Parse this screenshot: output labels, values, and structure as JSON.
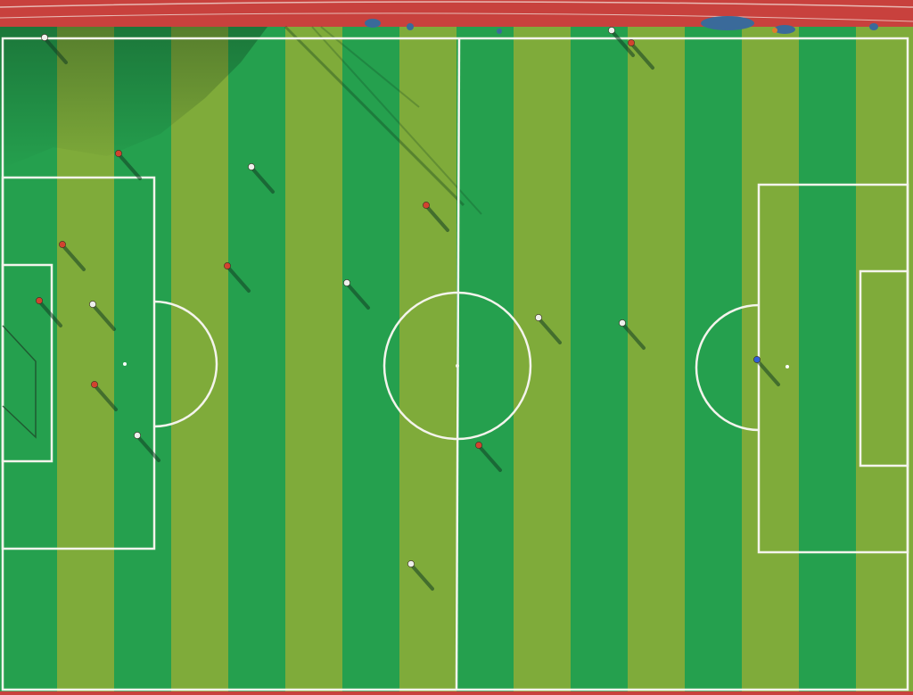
{
  "scene": {
    "subject": "soccer-field-aerial-view",
    "colors": {
      "track": "#c8413d",
      "track_line": "#e8b9b3",
      "stripe_green": "#25a04e",
      "stripe_yellow": "#7fab3a",
      "field_lines": "#f4f4ec",
      "shadow": "#123d22",
      "team_red": "#d2432f",
      "team_white": "#eef0ec",
      "team_blue": "#2f5fd8",
      "spectators": "#3a6a9a"
    },
    "stripe_count": 16,
    "player_count": 18,
    "spectator_group_count": 6,
    "ball_count": 2
  }
}
